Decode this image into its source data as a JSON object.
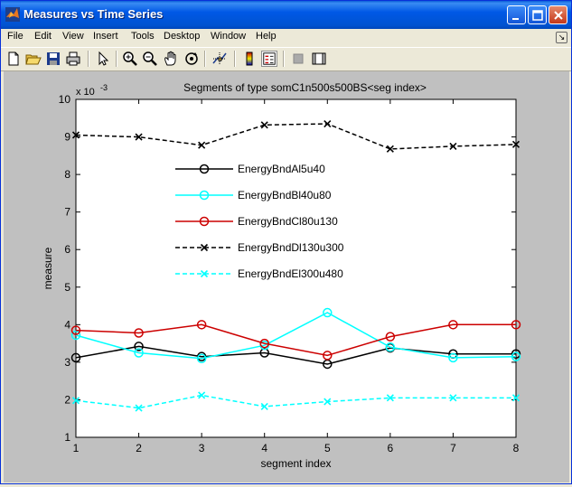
{
  "window": {
    "title": "Measures vs Time Series"
  },
  "menu": [
    "File",
    "Edit",
    "View",
    "Insert",
    "Tools",
    "Desktop",
    "Window",
    "Help"
  ],
  "toolbar": [
    "new-figure-icon",
    "open-file-icon",
    "save-icon",
    "print-icon",
    "edit-plot-arrow-icon",
    "zoom-in-icon",
    "zoom-out-icon",
    "pan-hand-icon",
    "rotate-3d-icon",
    "data-cursor-icon",
    "colorbar-icon",
    "legend-icon",
    "hide-plot-tools-icon",
    "show-plot-tools-icon"
  ],
  "colors": {
    "titlebar": "#0058e6",
    "figure_bg": "#c0c0c0",
    "axes_bg": "#ffffff"
  },
  "chart_data": {
    "type": "line",
    "title": "Segments of type somC1n500s500BS<seg index>",
    "xlabel": "segment index",
    "ylabel": "measure",
    "exponent_label": "x 10",
    "exponent_power": "-3",
    "xlim": [
      1,
      8
    ],
    "ylim": [
      1,
      10
    ],
    "xticks": [
      "1",
      "2",
      "3",
      "4",
      "5",
      "6",
      "7",
      "8"
    ],
    "yticks": [
      "1",
      "2",
      "3",
      "4",
      "5",
      "6",
      "7",
      "8",
      "9",
      "10"
    ],
    "legend_position": "upper-left-inside",
    "x": [
      1,
      2,
      3,
      4,
      5,
      6,
      7,
      8
    ],
    "series": [
      {
        "name": "EnergyBndAl5u40",
        "color": "#000000",
        "dash": "solid",
        "marker": "circle",
        "values": [
          3.12,
          3.42,
          3.15,
          3.25,
          2.95,
          3.38,
          3.22,
          3.22
        ]
      },
      {
        "name": "EnergyBndBl40u80",
        "color": "#00ffff",
        "dash": "solid",
        "marker": "circle",
        "values": [
          3.72,
          3.25,
          3.1,
          3.45,
          4.32,
          3.4,
          3.12,
          3.15
        ]
      },
      {
        "name": "EnergyBndCl80u130",
        "color": "#cc0000",
        "dash": "solid",
        "marker": "circle",
        "values": [
          3.85,
          3.78,
          4.0,
          3.5,
          3.18,
          3.68,
          4.0,
          4.0
        ]
      },
      {
        "name": "EnergyBndDl130u300",
        "color": "#000000",
        "dash": "dashed",
        "marker": "x",
        "values": [
          9.05,
          9.0,
          8.78,
          9.32,
          9.35,
          8.68,
          8.75,
          8.8
        ]
      },
      {
        "name": "EnergyBndEl300u480",
        "color": "#00ffff",
        "dash": "dashed",
        "marker": "x",
        "values": [
          1.98,
          1.78,
          2.12,
          1.82,
          1.95,
          2.05,
          2.05,
          2.05
        ]
      }
    ]
  }
}
